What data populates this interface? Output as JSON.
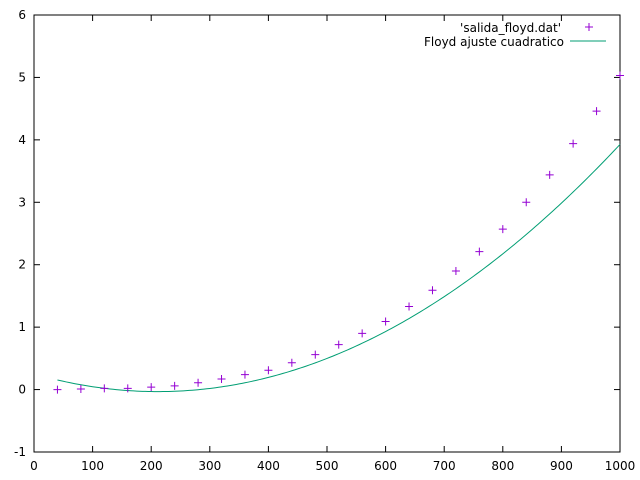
{
  "chart_data": {
    "type": "scatter",
    "xlim": [
      0,
      1000
    ],
    "ylim": [
      -1,
      6
    ],
    "xticks": [
      0,
      100,
      200,
      300,
      400,
      500,
      600,
      700,
      800,
      900,
      1000
    ],
    "yticks": [
      -1,
      0,
      1,
      2,
      3,
      4,
      5,
      6
    ],
    "grid": false,
    "legend_position": "top-right",
    "series": [
      {
        "name": "'salida_floyd.dat'",
        "style": "points",
        "marker": "plus",
        "color": "#9400d3",
        "x": [
          40,
          80,
          120,
          160,
          200,
          240,
          280,
          320,
          360,
          400,
          440,
          480,
          520,
          560,
          600,
          640,
          680,
          720,
          760,
          800,
          840,
          880,
          920,
          960,
          1000
        ],
        "y": [
          0.0,
          0.01,
          0.02,
          0.02,
          0.04,
          0.06,
          0.11,
          0.17,
          0.24,
          0.31,
          0.43,
          0.56,
          0.72,
          0.9,
          1.09,
          1.33,
          1.59,
          1.9,
          2.21,
          2.57,
          3.0,
          3.44,
          3.94,
          4.46,
          5.03
        ]
      },
      {
        "name": "Floyd ajuste cuadratico",
        "style": "line",
        "color": "#009e73",
        "fit": {
          "a": 6.36e-06,
          "b": -0.002684,
          "c": 0.2508
        },
        "x_range": [
          40,
          1000
        ]
      }
    ]
  }
}
